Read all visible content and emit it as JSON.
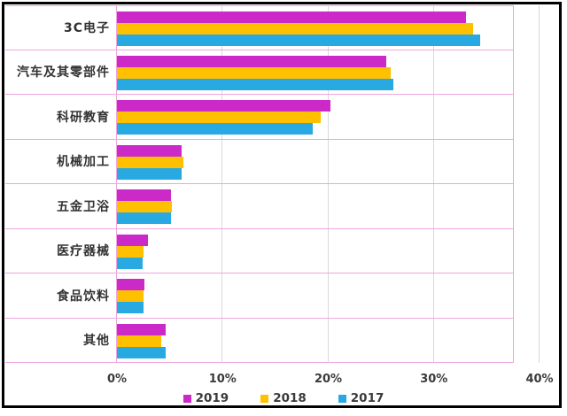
{
  "chart_data": {
    "type": "bar",
    "orientation": "horizontal",
    "categories": [
      "3C电子",
      "汽车及其零部件",
      "科研教育",
      "机械加工",
      "五金卫浴",
      "医疗器械",
      "食品饮料",
      "其他"
    ],
    "series": [
      {
        "name": "2019",
        "color": "#CB2AC8",
        "values": [
          33.0,
          25.5,
          20.2,
          6.1,
          5.1,
          2.9,
          2.6,
          4.6
        ]
      },
      {
        "name": "2018",
        "color": "#FFC000",
        "values": [
          33.7,
          25.9,
          19.3,
          6.3,
          5.2,
          2.5,
          2.5,
          4.2
        ]
      },
      {
        "name": "2017",
        "color": "#29A9E1",
        "values": [
          34.4,
          26.2,
          18.5,
          6.1,
          5.1,
          2.4,
          2.5,
          4.6
        ]
      }
    ],
    "xlim": [
      0,
      40
    ],
    "xtick_labels": [
      "0%",
      "10%",
      "20%",
      "30%",
      "40%"
    ],
    "xtick_values": [
      0,
      10,
      20,
      30,
      40
    ],
    "grid": true,
    "legend_position": "bottom"
  },
  "palette": {
    "row_line": "#efa5dd",
    "grid_line": "#d9d9d9",
    "text": "#3a3a3a",
    "frame": "#000000"
  }
}
